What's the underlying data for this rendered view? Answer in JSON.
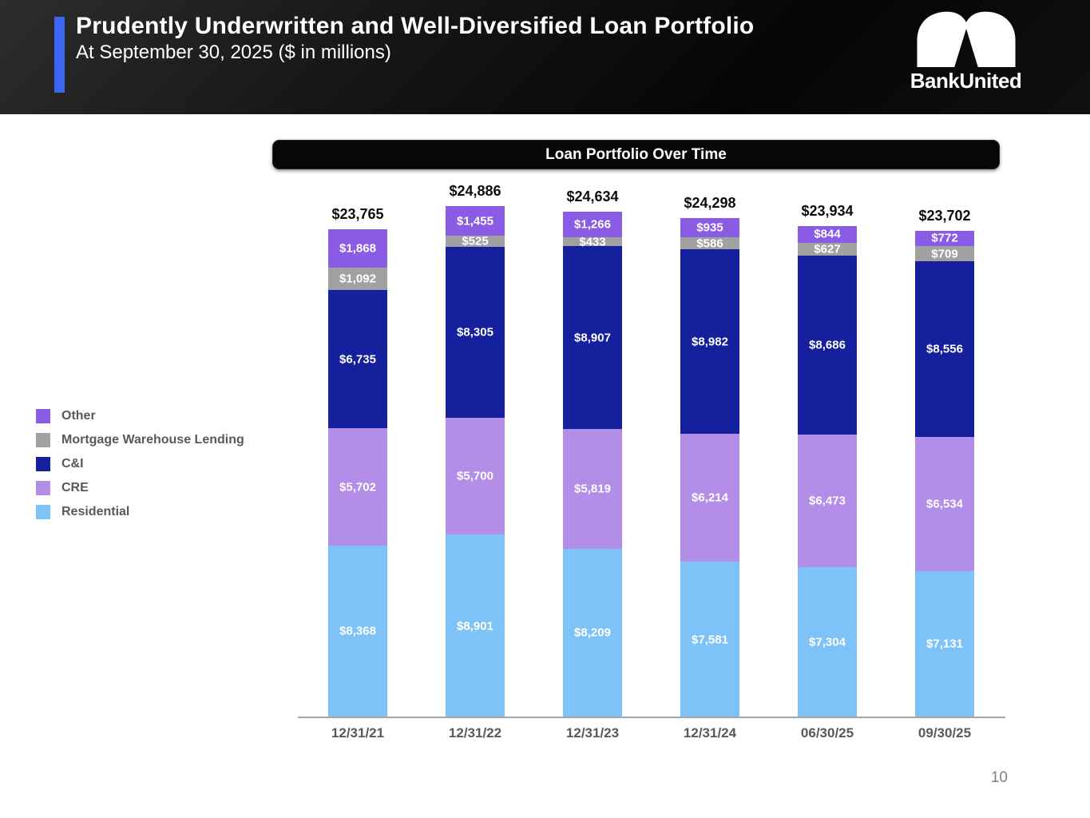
{
  "header": {
    "title": "Prudently Underwritten and Well-Diversified Loan Portfolio",
    "subtitle": "At September 30, 2025 ($ in millions)",
    "logo_text": "BankUnited"
  },
  "chart_title": "Loan Portfolio Over Time",
  "page_number": "10",
  "colors": {
    "accent_blue": "#3a66f0",
    "other": "#8a5ce6",
    "mortgage_warehouse": "#a1a1a1",
    "ci": "#15209d",
    "cre": "#b28ee8",
    "residential": "#7dc3f8",
    "axis": "#a6a6a6",
    "legend_text": "#595959"
  },
  "chart_data": {
    "type": "bar",
    "stacked": true,
    "title": "Loan Portfolio Over Time",
    "units": "$ in millions",
    "legend_position": "left",
    "grid": false,
    "categories": [
      "12/31/21",
      "12/31/22",
      "12/31/23",
      "12/31/24",
      "06/30/25",
      "09/30/25"
    ],
    "series": [
      {
        "name": "Other",
        "color": "#8a5ce6",
        "values": [
          1868,
          1455,
          1266,
          935,
          844,
          772
        ]
      },
      {
        "name": "Mortgage Warehouse Lending",
        "color": "#a1a1a1",
        "values": [
          1092,
          525,
          433,
          586,
          627,
          709
        ]
      },
      {
        "name": "C&I",
        "color": "#15209d",
        "values": [
          6735,
          8305,
          8907,
          8982,
          8686,
          8556
        ]
      },
      {
        "name": "CRE",
        "color": "#b28ee8",
        "values": [
          5702,
          5700,
          5819,
          6214,
          6473,
          6534
        ]
      },
      {
        "name": "Residential",
        "color": "#7dc3f8",
        "values": [
          8368,
          8901,
          8209,
          7581,
          7304,
          7131
        ]
      }
    ],
    "totals": [
      23765,
      24886,
      24634,
      24298,
      23934,
      23702
    ],
    "totals_labels": [
      "$23,765",
      "$24,886",
      "$24,634",
      "$24,298",
      "$23,934",
      "$23,702"
    ],
    "ylim": [
      0,
      24886
    ]
  }
}
